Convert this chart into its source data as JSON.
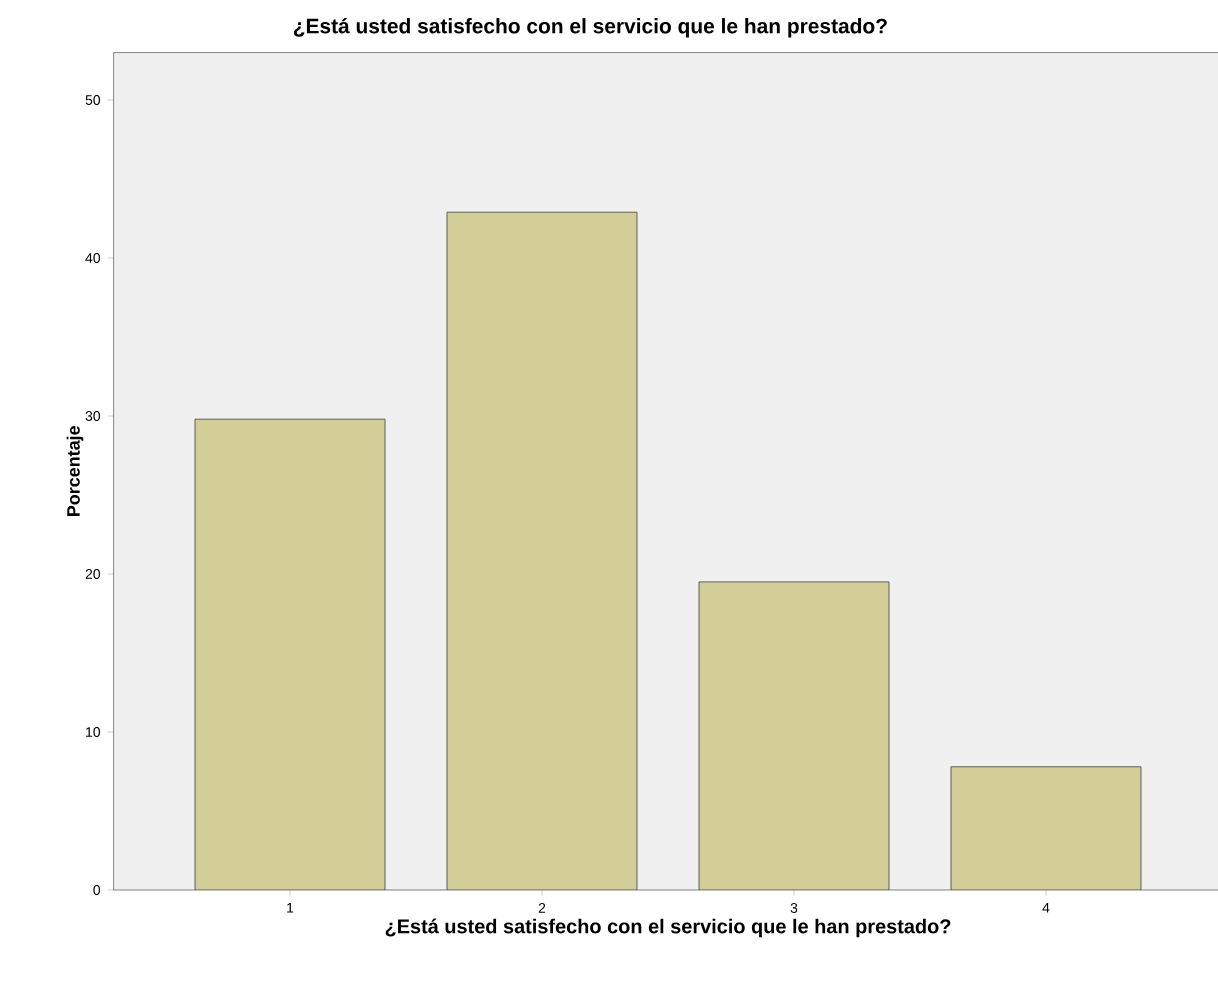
{
  "chart_data": {
    "type": "bar",
    "title": "¿Está usted satisfecho con el servicio que le han prestado?",
    "xlabel": "¿Está usted satisfecho con el servicio que le han prestado?",
    "ylabel": "Porcentaje",
    "categories": [
      "1",
      "2",
      "3",
      "4"
    ],
    "values": [
      29.8,
      42.9,
      19.5,
      7.8
    ],
    "color": "#d3ce97",
    "ylim": [
      0,
      53
    ],
    "yticks": [
      0,
      10,
      20,
      30,
      40,
      50
    ],
    "grid": false
  }
}
